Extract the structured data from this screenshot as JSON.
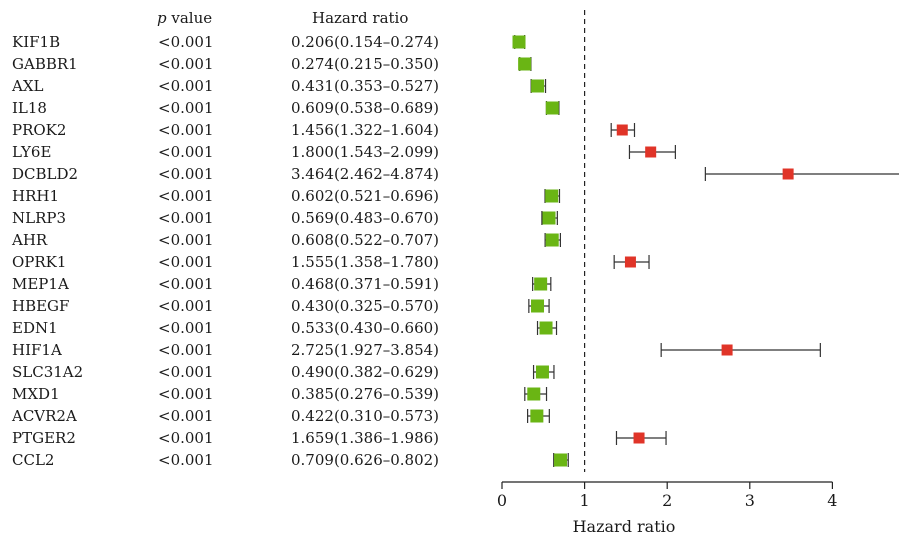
{
  "table": {
    "p_label_italic": "p",
    "p_label_rest": " value",
    "hr_header": "Hazard ratio"
  },
  "chart_data": {
    "type": "forest",
    "xlabel": "Hazard ratio",
    "xlim": [
      0,
      4.8
    ],
    "xticks": [
      0,
      1,
      2,
      3,
      4
    ],
    "reference_line": 1,
    "colors": {
      "protective": "#6ab514",
      "risk": "#e03428",
      "whisker": "#333333"
    },
    "rows": [
      {
        "gene": "KIF1B",
        "p": "<0.001",
        "hr_text": "0.206(0.154–0.274)",
        "hr": 0.206,
        "lo": 0.154,
        "hi": 0.274
      },
      {
        "gene": "GABBR1",
        "p": "<0.001",
        "hr_text": "0.274(0.215–0.350)",
        "hr": 0.274,
        "lo": 0.215,
        "hi": 0.35
      },
      {
        "gene": "AXL",
        "p": "<0.001",
        "hr_text": "0.431(0.353–0.527)",
        "hr": 0.431,
        "lo": 0.353,
        "hi": 0.527
      },
      {
        "gene": "IL18",
        "p": "<0.001",
        "hr_text": "0.609(0.538–0.689)",
        "hr": 0.609,
        "lo": 0.538,
        "hi": 0.689
      },
      {
        "gene": "PROK2",
        "p": "<0.001",
        "hr_text": "1.456(1.322–1.604)",
        "hr": 1.456,
        "lo": 1.322,
        "hi": 1.604
      },
      {
        "gene": "LY6E",
        "p": "<0.001",
        "hr_text": "1.800(1.543–2.099)",
        "hr": 1.8,
        "lo": 1.543,
        "hi": 2.099
      },
      {
        "gene": "DCBLD2",
        "p": "<0.001",
        "hr_text": "3.464(2.462–4.874)",
        "hr": 3.464,
        "lo": 2.462,
        "hi": 4.874
      },
      {
        "gene": "HRH1",
        "p": "<0.001",
        "hr_text": "0.602(0.521–0.696)",
        "hr": 0.602,
        "lo": 0.521,
        "hi": 0.696
      },
      {
        "gene": "NLRP3",
        "p": "<0.001",
        "hr_text": "0.569(0.483–0.670)",
        "hr": 0.569,
        "lo": 0.483,
        "hi": 0.67
      },
      {
        "gene": "AHR",
        "p": "<0.001",
        "hr_text": "0.608(0.522–0.707)",
        "hr": 0.608,
        "lo": 0.522,
        "hi": 0.707
      },
      {
        "gene": "OPRK1",
        "p": "<0.001",
        "hr_text": "1.555(1.358–1.780)",
        "hr": 1.555,
        "lo": 1.358,
        "hi": 1.78
      },
      {
        "gene": "MEP1A",
        "p": "<0.001",
        "hr_text": "0.468(0.371–0.591)",
        "hr": 0.468,
        "lo": 0.371,
        "hi": 0.591
      },
      {
        "gene": "HBEGF",
        "p": "<0.001",
        "hr_text": "0.430(0.325–0.570)",
        "hr": 0.43,
        "lo": 0.325,
        "hi": 0.57
      },
      {
        "gene": "EDN1",
        "p": "<0.001",
        "hr_text": "0.533(0.430–0.660)",
        "hr": 0.533,
        "lo": 0.43,
        "hi": 0.66
      },
      {
        "gene": "HIF1A",
        "p": "<0.001",
        "hr_text": "2.725(1.927–3.854)",
        "hr": 2.725,
        "lo": 1.927,
        "hi": 3.854
      },
      {
        "gene": "SLC31A2",
        "p": "<0.001",
        "hr_text": "0.490(0.382–0.629)",
        "hr": 0.49,
        "lo": 0.382,
        "hi": 0.629
      },
      {
        "gene": "MXD1",
        "p": "<0.001",
        "hr_text": "0.385(0.276–0.539)",
        "hr": 0.385,
        "lo": 0.276,
        "hi": 0.539
      },
      {
        "gene": "ACVR2A",
        "p": "<0.001",
        "hr_text": "0.422(0.310–0.573)",
        "hr": 0.422,
        "lo": 0.31,
        "hi": 0.573
      },
      {
        "gene": "PTGER2",
        "p": "<0.001",
        "hr_text": "1.659(1.386–1.986)",
        "hr": 1.659,
        "lo": 1.386,
        "hi": 1.986
      },
      {
        "gene": "CCL2",
        "p": "<0.001",
        "hr_text": "0.709(0.626–0.802)",
        "hr": 0.709,
        "lo": 0.626,
        "hi": 0.802
      }
    ]
  }
}
